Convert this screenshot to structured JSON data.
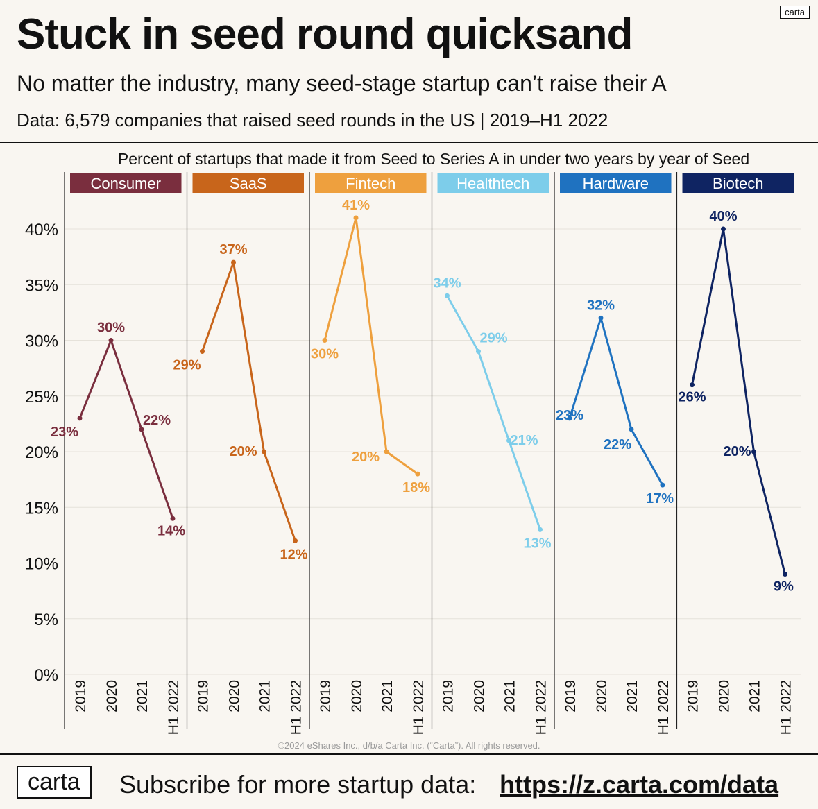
{
  "brand": {
    "corner_logo": "carta",
    "footer_logo": "carta"
  },
  "header": {
    "title": "Stuck in seed round quicksand",
    "subtitle": "No matter the industry, many seed-stage startup can’t raise their A",
    "data_note": "Data: 6,579 companies that raised seed rounds in the US | 2019–H1 2022"
  },
  "chart_data": {
    "type": "line",
    "title": "Percent of startups that made it from Seed to Series A in under two years by year of Seed",
    "y_tick_labels": [
      "0%",
      "5%",
      "10%",
      "15%",
      "20%",
      "25%",
      "30%",
      "35%",
      "40%"
    ],
    "ylim": [
      0,
      40
    ],
    "grid": true,
    "x": [
      "2019",
      "2020",
      "2021",
      "H1 2022"
    ],
    "series": [
      {
        "name": "Consumer",
        "color": "#7a2e3e",
        "values": [
          23,
          30,
          22,
          14
        ],
        "labels": [
          "23%",
          "30%",
          "22%",
          "14%"
        ]
      },
      {
        "name": "SaaS",
        "color": "#c8651b",
        "values": [
          29,
          37,
          20,
          12
        ],
        "labels": [
          "29%",
          "37%",
          "20%",
          "12%"
        ]
      },
      {
        "name": "Fintech",
        "color": "#eea03e",
        "values": [
          30,
          41,
          20,
          18
        ],
        "labels": [
          "30%",
          "41%",
          "20%",
          "18%"
        ]
      },
      {
        "name": "Healthtech",
        "color": "#7dcdea",
        "values": [
          34,
          29,
          21,
          13
        ],
        "labels": [
          "34%",
          "29%",
          "21%",
          "13%"
        ]
      },
      {
        "name": "Hardware",
        "color": "#1f72c0",
        "values": [
          23,
          32,
          22,
          17
        ],
        "labels": [
          "23%",
          "32%",
          "22%",
          "17%"
        ]
      },
      {
        "name": "Biotech",
        "color": "#0f2462",
        "values": [
          26,
          40,
          20,
          9
        ],
        "labels": [
          "26%",
          "40%",
          "20%",
          "9%"
        ]
      }
    ]
  },
  "copyright": "©2024 eShares Inc., d/b/a Carta Inc. (“Carta”). All rights reserved.",
  "footer": {
    "subscribe_text": "Subscribe for more startup data:",
    "link": "https://z.carta.com/data"
  }
}
